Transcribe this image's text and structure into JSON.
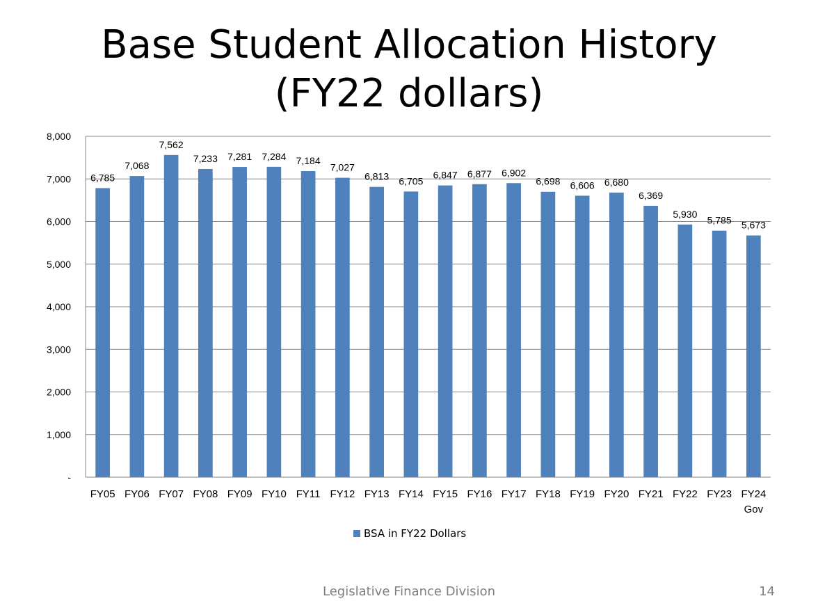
{
  "slide": {
    "title_line1": "Base Student Allocation History",
    "title_line2": "(FY22 dollars)",
    "footer": "Legislative Finance Division",
    "page_number": "14"
  },
  "chart_data": {
    "type": "bar",
    "title": "",
    "xlabel": "",
    "ylabel": "",
    "categories": [
      "FY05",
      "FY06",
      "FY07",
      "FY08",
      "FY09",
      "FY10",
      "FY11",
      "FY12",
      "FY13",
      "FY14",
      "FY15",
      "FY16",
      "FY17",
      "FY18",
      "FY19",
      "FY20",
      "FY21",
      "FY22",
      "FY23",
      "FY24 Gov"
    ],
    "series": [
      {
        "name": "BSA in FY22 Dollars",
        "values": [
          6785,
          7068,
          7562,
          7233,
          7281,
          7284,
          7184,
          7027,
          6813,
          6705,
          6847,
          6877,
          6902,
          6698,
          6606,
          6680,
          6369,
          5930,
          5785,
          5673
        ],
        "labels": [
          "6,785",
          "7,068",
          "7,562",
          "7,233",
          "7,281",
          "7,284",
          "7,184",
          "7,027",
          "6,813",
          "6,705",
          "6,847",
          "6,877",
          "6,902",
          "6,698",
          "6,606",
          "6,680",
          "6,369",
          "5,930",
          "5,785",
          "5,673"
        ],
        "color": "#4F81BD"
      }
    ],
    "ylim": [
      0,
      8000
    ],
    "yticks": [
      0,
      1000,
      2000,
      3000,
      4000,
      5000,
      6000,
      7000,
      8000
    ],
    "ytick_labels": [
      "-",
      "1,000",
      "2,000",
      "3,000",
      "4,000",
      "5,000",
      "6,000",
      "7,000",
      "8,000"
    ],
    "grid": true,
    "legend_position": "bottom"
  }
}
